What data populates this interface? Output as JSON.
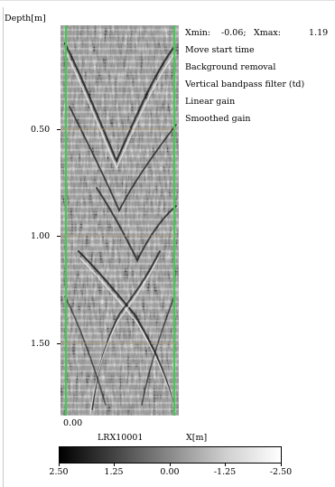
{
  "axis": {
    "y_label": "Depth[m]",
    "x_label": "X[m]",
    "y_ticks": [
      "0.50",
      "1.00",
      "1.50"
    ],
    "x_tick": "0.00"
  },
  "profile": {
    "name": "LRX10001",
    "xmin_label": "Xmin:",
    "xmin": "-0.06;",
    "xmax_label": "Xmax:",
    "xmax": "1.19"
  },
  "processing_steps": [
    "Move start time",
    "Background removal",
    "Vertical bandpass filter (td)",
    "Linear gain",
    "Smoothed gain"
  ],
  "colorbar": {
    "ticks": [
      "2.50",
      "1.25",
      "0.00",
      "-1.25",
      "-2.50"
    ]
  },
  "colors": {
    "trace_marker": "#39d04a",
    "depth_line": "#c7a063"
  }
}
